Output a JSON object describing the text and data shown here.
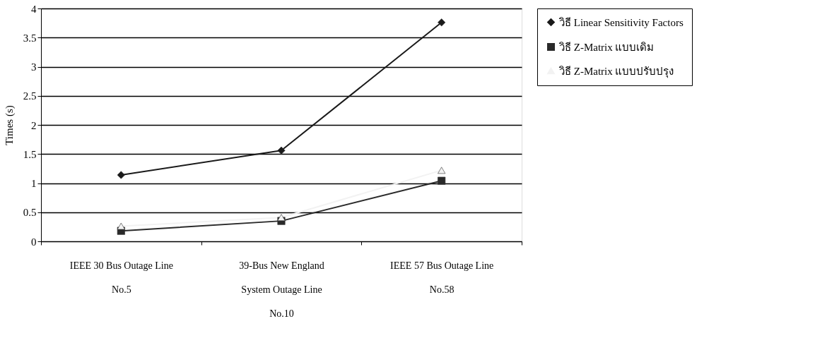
{
  "chart_data": {
    "type": "line",
    "ylabel": "Times (s)",
    "categories": [
      "IEEE 30 Bus Outage Line\nNo.5",
      "39-Bus New England\nSystem  Outage Line\nNo.10",
      "IEEE 57 Bus Outage Line\nNo.58"
    ],
    "series": [
      {
        "name": "วิธี Linear Sensitivity Factors",
        "color": "#1a1a1a",
        "marker": "diamond",
        "values": [
          1.14,
          1.56,
          3.76
        ]
      },
      {
        "name": "วิธี Z-Matrix แบบเดิม",
        "color": "#2a2a2a",
        "marker": "square",
        "values": [
          0.18,
          0.35,
          1.04
        ]
      },
      {
        "name": "วิธี Z-Matrix แบบปรับปรุง",
        "color": "#f2f2f2",
        "marker": "triangle",
        "values": [
          0.26,
          0.41,
          1.22
        ]
      }
    ],
    "ylim": [
      0,
      4
    ],
    "yticks": [
      0,
      0.5,
      1,
      1.5,
      2,
      2.5,
      3,
      3.5,
      4
    ],
    "grid": "y",
    "legend": "right",
    "line_style": "solid"
  }
}
